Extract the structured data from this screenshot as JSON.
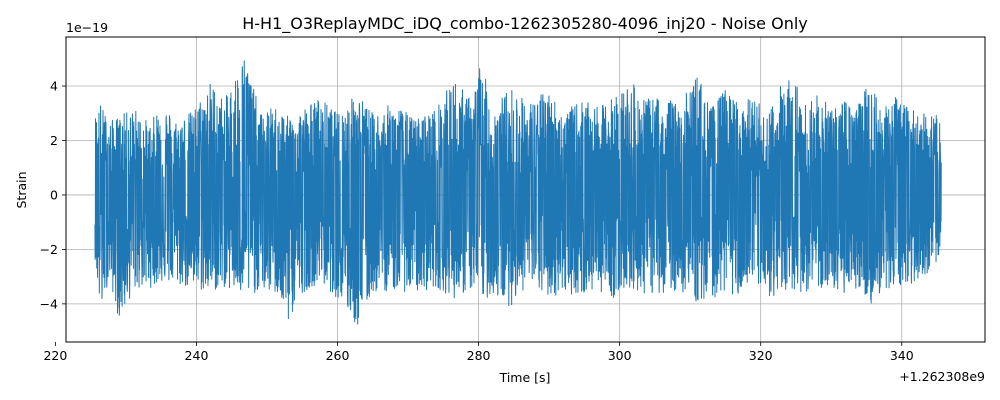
{
  "chart_data": {
    "type": "line",
    "title": "H-H1_O3ReplayMDC_iDQ_combo-1262305280-4096_inj20 - Noise Only",
    "xlabel": "Time [s]",
    "ylabel": "Strain",
    "x_offset_text": "+1.262308e9",
    "y_offset_text": "1e−19",
    "xlim": [
      221.5,
      351.8
    ],
    "ylim": [
      -5.4,
      5.8
    ],
    "x_ticks": [
      220,
      240,
      260,
      280,
      300,
      320,
      340
    ],
    "x_tick_labels": [
      "220",
      "240",
      "260",
      "280",
      "300",
      "320",
      "340"
    ],
    "y_ticks": [
      -4,
      -2,
      0,
      2,
      4
    ],
    "y_tick_labels": [
      "−4",
      "−2",
      "0",
      "2",
      "4"
    ],
    "grid": true,
    "legend": "none",
    "series": [
      {
        "color": "#1f77b4",
        "x_range": [
          225.6,
          345.6
        ],
        "envelope_x": [
          225.6,
          226.4,
          227.6,
          229.0,
          231.2,
          233.5,
          235.0,
          237.0,
          239.5,
          242.0,
          244.0,
          246.9,
          249.0,
          251.5,
          252.9,
          255.0,
          257.5,
          260.0,
          262.8,
          265.0,
          268.0,
          271.0,
          274.0,
          276.5,
          279.0,
          280.3,
          282.0,
          284.5,
          287.0,
          290.0,
          292.0,
          294.5,
          297.0,
          299.0,
          301.5,
          303.8,
          306.0,
          308.5,
          311.0,
          313.0,
          315.0,
          317.0,
          319.0,
          321.0,
          324.3,
          326.0,
          328.0,
          330.0,
          332.0,
          334.0,
          335.7,
          337.0,
          339.0,
          341.0,
          343.0,
          345.6
        ],
        "envelope_upper": [
          3.0,
          3.4,
          2.7,
          2.9,
          3.2,
          2.6,
          3.5,
          2.8,
          3.1,
          4.2,
          3.5,
          5.3,
          3.0,
          3.3,
          2.9,
          3.2,
          3.6,
          3.0,
          3.8,
          3.0,
          3.4,
          2.8,
          3.2,
          4.3,
          3.5,
          5.0,
          3.2,
          4.0,
          3.4,
          3.9,
          3.0,
          3.5,
          3.2,
          3.6,
          4.2,
          3.5,
          3.7,
          3.3,
          4.5,
          3.2,
          3.9,
          3.4,
          3.6,
          3.0,
          4.9,
          3.3,
          3.7,
          3.2,
          3.5,
          3.4,
          4.5,
          3.3,
          3.6,
          3.2,
          3.0,
          2.9
        ],
        "envelope_lower": [
          -2.3,
          -4.5,
          -3.0,
          -4.6,
          -3.5,
          -3.4,
          -3.2,
          -3.3,
          -3.5,
          -3.6,
          -3.4,
          -3.8,
          -3.5,
          -3.7,
          -4.8,
          -3.6,
          -3.2,
          -3.8,
          -4.9,
          -3.6,
          -3.5,
          -3.6,
          -3.4,
          -3.8,
          -3.5,
          -3.9,
          -3.7,
          -4.1,
          -3.3,
          -3.8,
          -3.6,
          -3.7,
          -3.5,
          -3.8,
          -3.4,
          -3.7,
          -3.6,
          -3.5,
          -4.0,
          -3.8,
          -3.6,
          -3.7,
          -3.5,
          -3.8,
          -3.5,
          -3.6,
          -3.4,
          -3.8,
          -3.6,
          -3.4,
          -4.0,
          -3.6,
          -3.4,
          -3.3,
          -3.0,
          -2.4
        ]
      }
    ]
  }
}
